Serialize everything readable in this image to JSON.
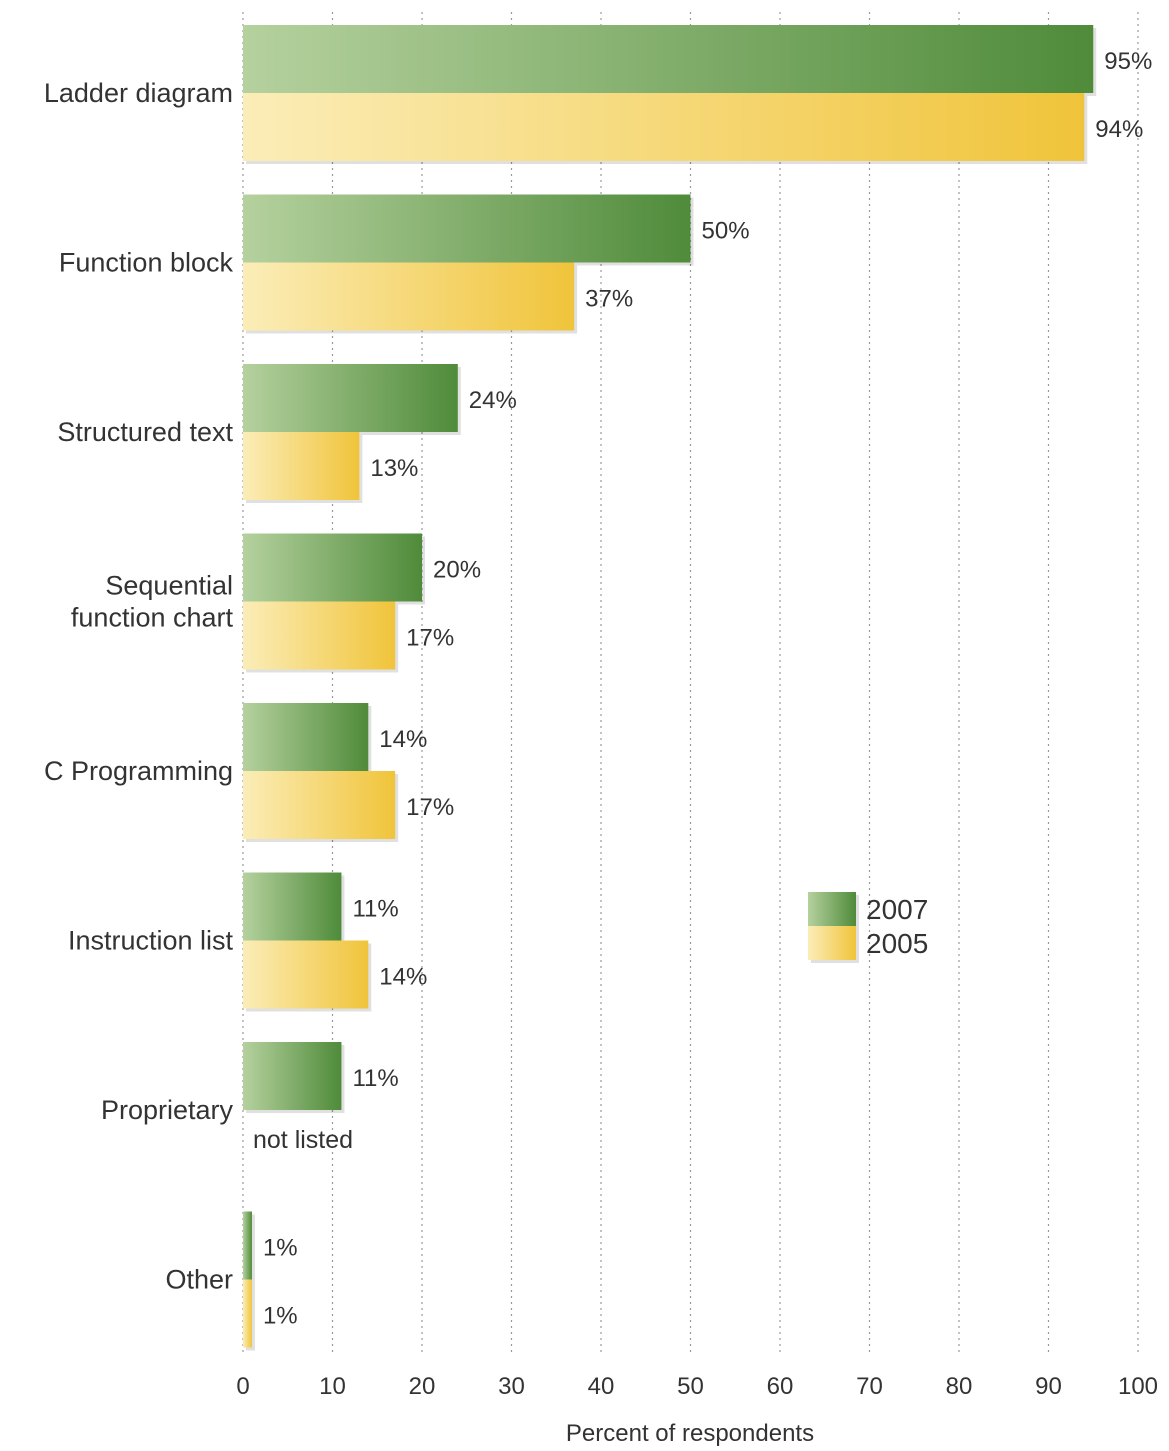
{
  "chart_data": {
    "type": "bar",
    "orientation": "horizontal",
    "categories": [
      [
        "Ladder diagram"
      ],
      [
        "Function block"
      ],
      [
        "Structured text"
      ],
      [
        "Sequential",
        "function chart"
      ],
      [
        "C Programming"
      ],
      [
        "Instruction list"
      ],
      [
        "Proprietary"
      ],
      [
        "Other"
      ]
    ],
    "series": [
      {
        "name": "2007",
        "values": [
          95,
          50,
          24,
          20,
          14,
          11,
          11,
          1
        ],
        "labels": [
          "95%",
          "50%",
          "24%",
          "20%",
          "14%",
          "11%",
          "11%",
          "1%"
        ],
        "color_dark": "#4f8b3a",
        "color_light": "#b5d19e"
      },
      {
        "name": "2005",
        "values": [
          94,
          37,
          13,
          17,
          17,
          14,
          null,
          1
        ],
        "labels": [
          "94%",
          "37%",
          "13%",
          "17%",
          "17%",
          "14%",
          null,
          "1%"
        ],
        "color_dark": "#f0c43a",
        "color_light": "#fbedb8"
      }
    ],
    "missing_note": "not listed",
    "xlabel": "Percent of respondents",
    "ylabel": "",
    "xlim": [
      0,
      100
    ],
    "xticks": [
      0,
      10,
      20,
      30,
      40,
      50,
      60,
      70,
      80,
      90,
      100
    ],
    "grid": true,
    "legend_position": "right-middle"
  }
}
